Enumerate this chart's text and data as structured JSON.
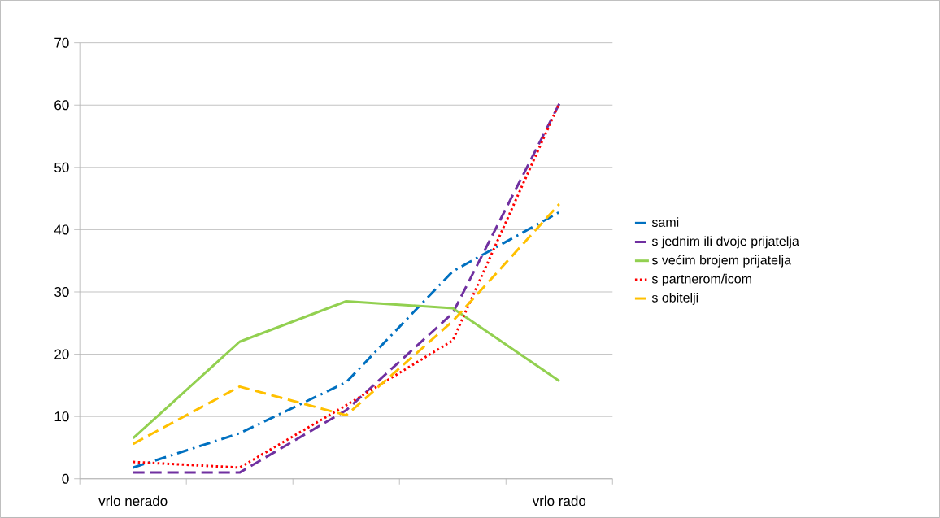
{
  "chart_data": {
    "type": "line",
    "categories": [
      "vrlo nerado",
      null,
      null,
      null,
      "vrlo rado"
    ],
    "series": [
      {
        "name": "sami",
        "color": "#0070c0",
        "line_style": "dashdot",
        "values": [
          1.8,
          7.3,
          15.5,
          33.3,
          42.8
        ]
      },
      {
        "name": "s jednim ili dvoje prijatelja",
        "color": "#7030a0",
        "line_style": "dashed",
        "values": [
          1,
          1,
          11,
          26.6,
          60.2
        ]
      },
      {
        "name": "s većim brojem prijatelja",
        "color": "#92d050",
        "line_style": "solid",
        "values": [
          6.5,
          22,
          28.5,
          27.4,
          15.7
        ]
      },
      {
        "name": "s partnerom/icom",
        "color": "#ff0000",
        "line_style": "dotted",
        "values": [
          2.7,
          1.8,
          11.8,
          22.2,
          60.3
        ]
      },
      {
        "name": "s obitelji",
        "color": "#ffc000",
        "line_style": "dashed",
        "values": [
          5.6,
          14.8,
          10.2,
          25.3,
          44.1
        ]
      }
    ],
    "ylim": [
      0,
      70
    ],
    "yticks": [
      0,
      10,
      20,
      30,
      40,
      50,
      60,
      70
    ],
    "grid": "y",
    "legend": "right",
    "marker": "none"
  }
}
